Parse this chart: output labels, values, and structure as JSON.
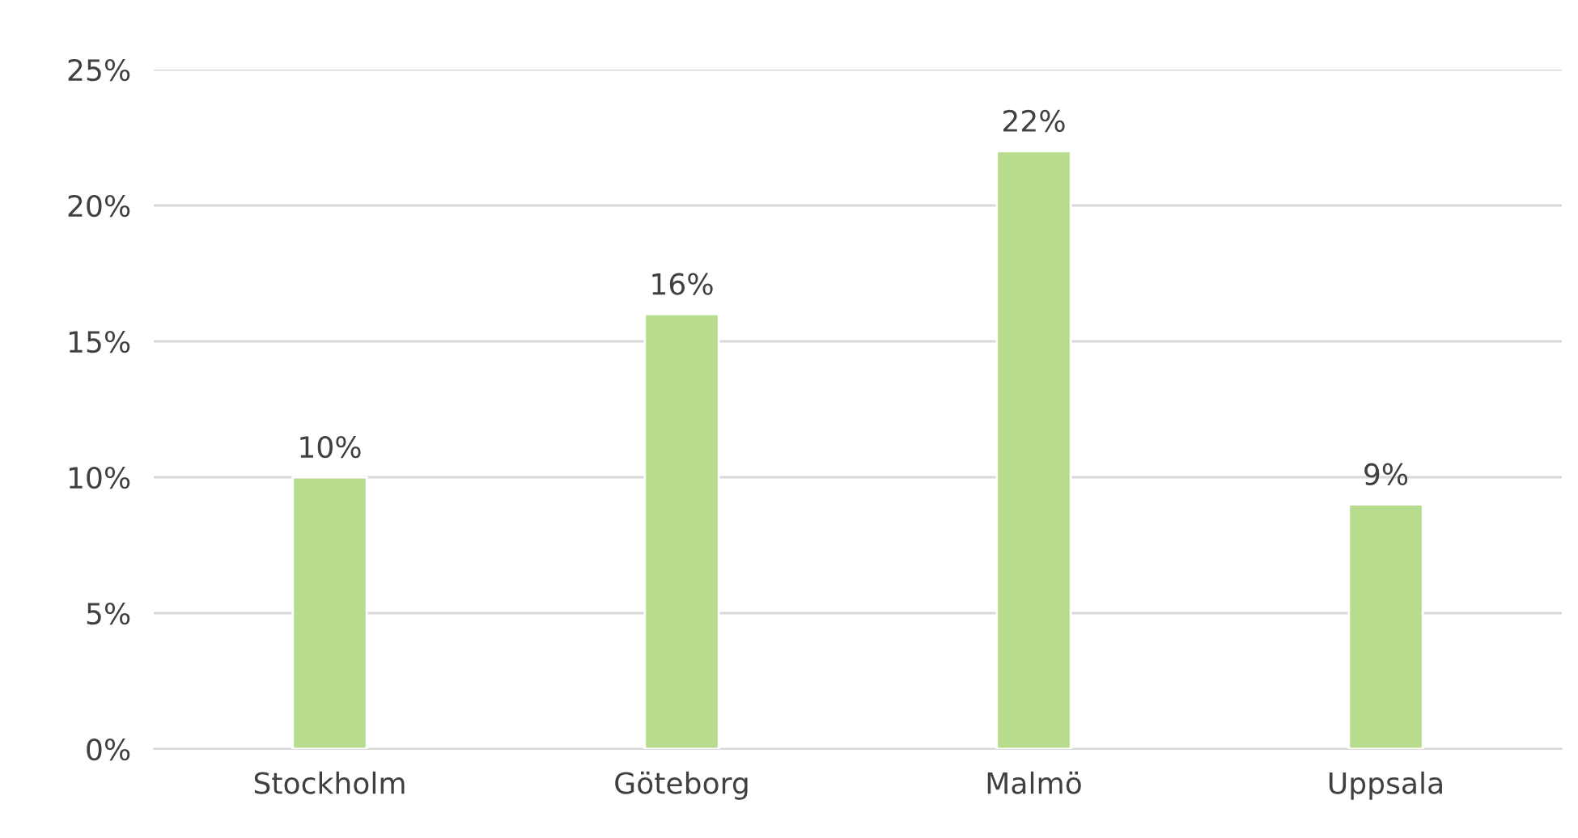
{
  "chart_data": {
    "type": "bar",
    "categories": [
      "Stockholm",
      "Göteborg",
      "Malmö",
      "Uppsala"
    ],
    "values": [
      10,
      16,
      22,
      9
    ],
    "value_labels": [
      "10%",
      "16%",
      "22%",
      "9%"
    ],
    "color": "#b8dc8e",
    "ylim": [
      0,
      25
    ],
    "yticks": [
      {
        "value": 0,
        "label": "0%"
      },
      {
        "value": 5,
        "label": "5%"
      },
      {
        "value": 10,
        "label": "10%"
      },
      {
        "value": 15,
        "label": "15%"
      },
      {
        "value": 20,
        "label": "20%"
      },
      {
        "value": 25,
        "label": "25%"
      }
    ],
    "grid": "y"
  }
}
